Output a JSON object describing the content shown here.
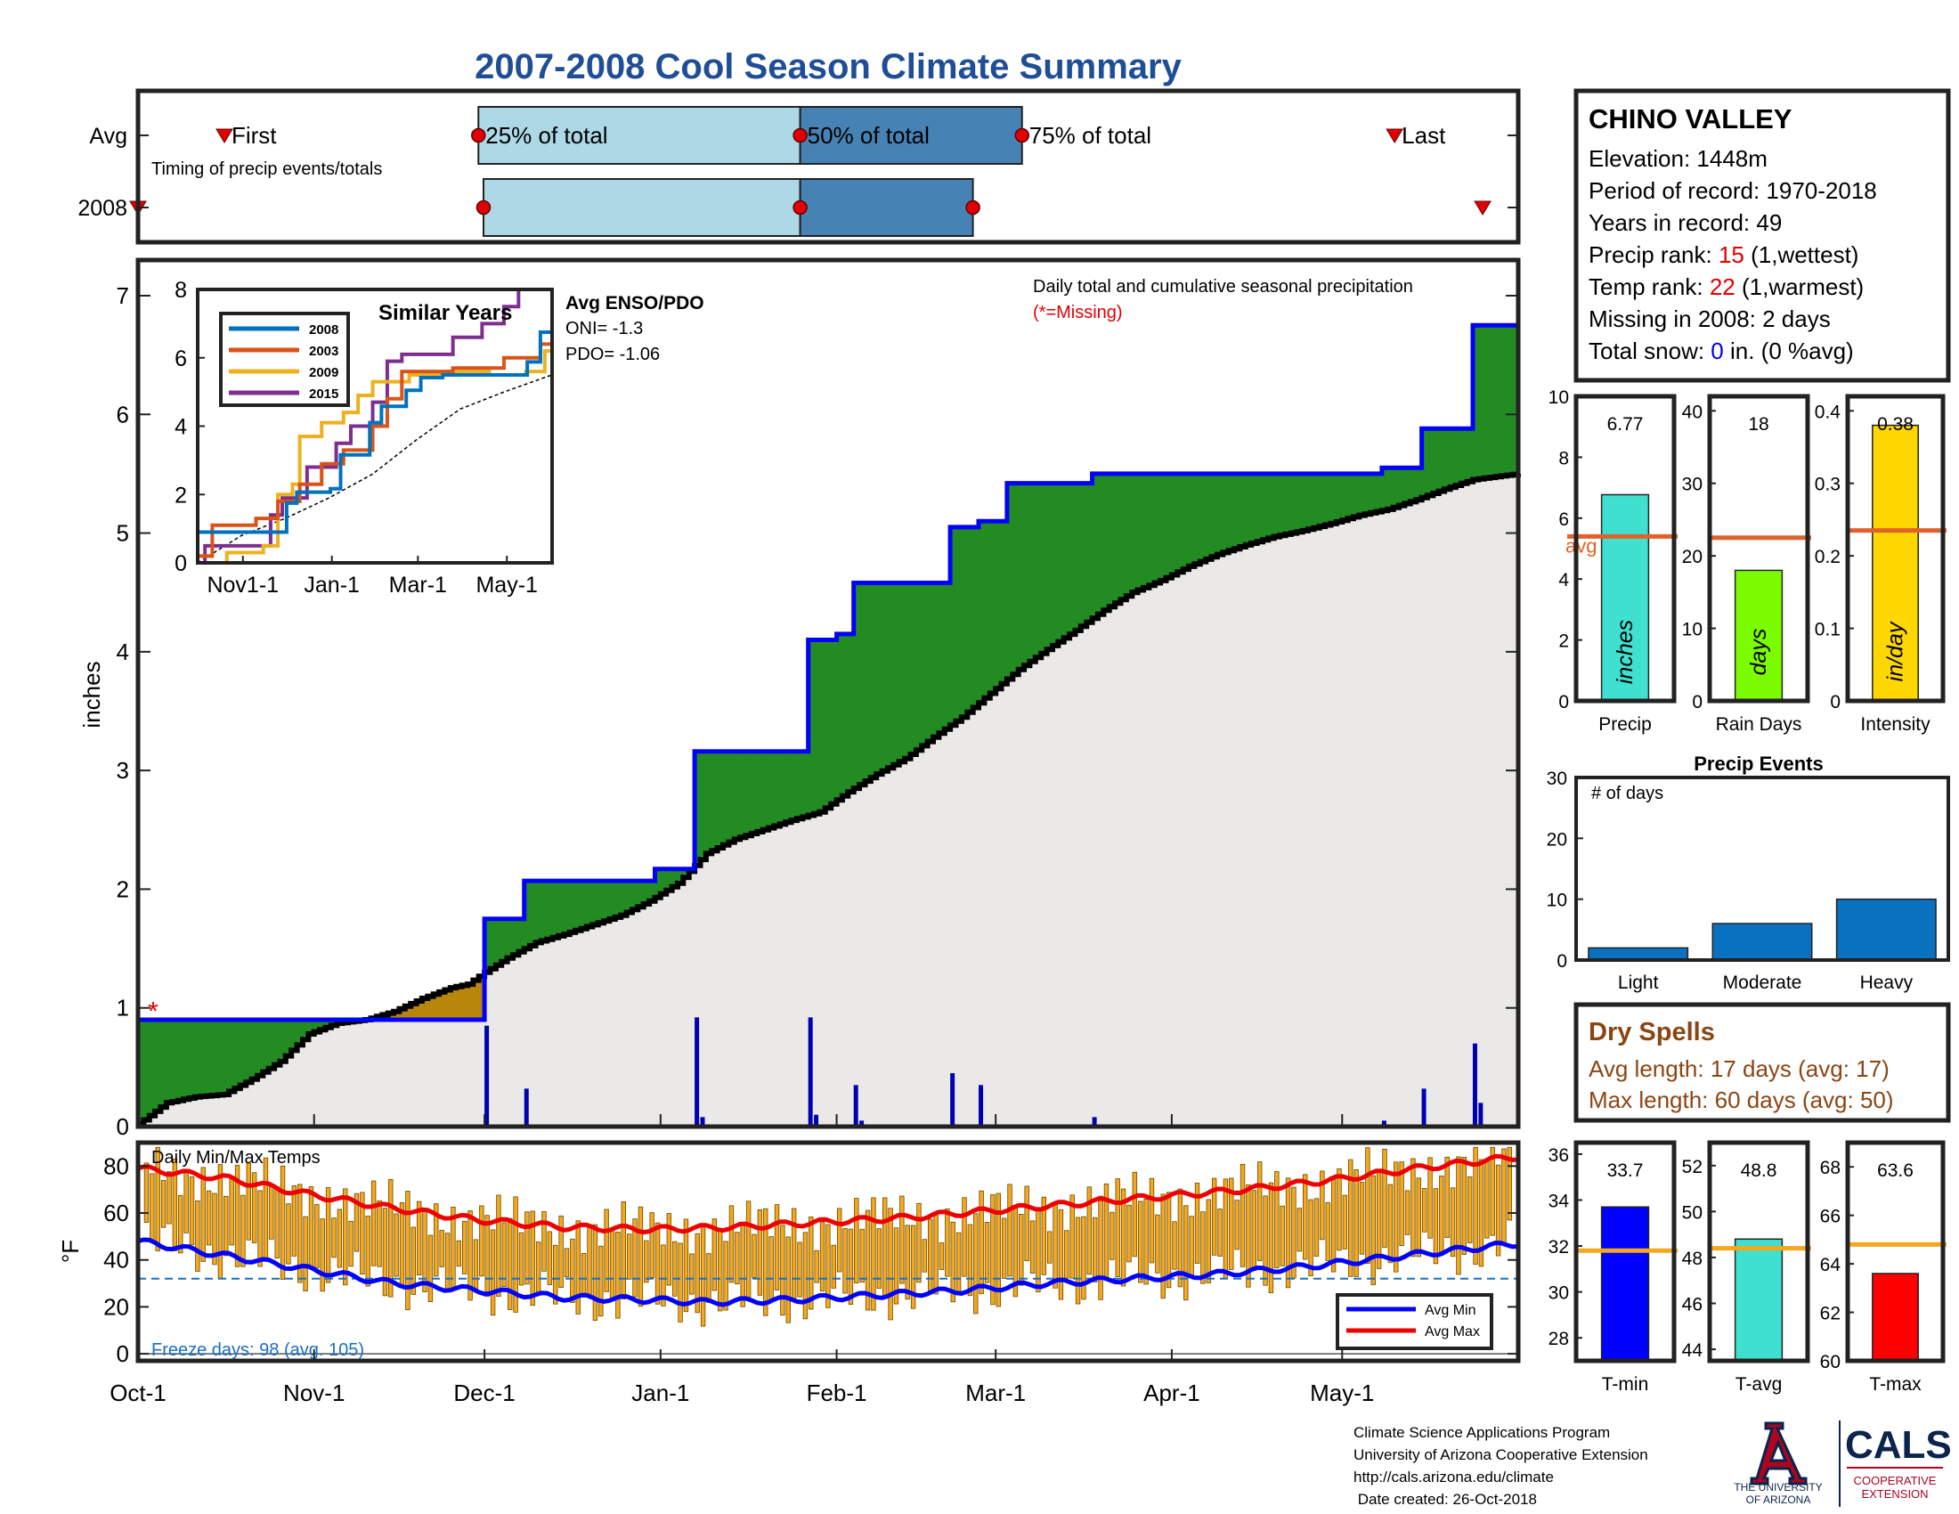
{
  "page": {
    "title": "2007-2008 Cool Season Climate Summary",
    "footer_lines": [
      "Climate Science Applications Program",
      "University of Arizona Cooperative Extension",
      "http://cals.arizona.edu/climate",
      " Date created: 26-Oct-2018"
    ],
    "logos": {
      "ua_top": "THE UNIVERSITY",
      "ua_bottom": "OF ARIZONA",
      "cals": "CALS",
      "cals_sub1": "COOPERATIVE",
      "cals_sub2": "EXTENSION"
    }
  },
  "station": {
    "name": "CHINO VALLEY",
    "elevation": "Elevation: 1448m",
    "period": "Period of record: 1970-2018",
    "years": "Years in record: 49",
    "precip_rank_label": "Precip rank: ",
    "precip_rank_value": "15",
    "precip_rank_note": " (1,wettest)",
    "temp_rank_label": "Temp rank: ",
    "temp_rank_value": "22",
    "temp_rank_note": " (1,warmest)",
    "missing": "Missing in 2008: 2 days",
    "snow_label": "Total snow: ",
    "snow_value": "0",
    "snow_note": " in. (0 %avg)"
  },
  "dry_spells": {
    "title": "Dry Spells",
    "avg": "Avg length: 17 days (avg: 17)",
    "max": "Max length: 60 days (avg: 50)"
  },
  "colors": {
    "title": "#1f4e96",
    "green": "#228b22",
    "blue_line": "#0000ff",
    "brown": "#b8860b",
    "light_blue": "#add8e6",
    "steel_blue": "#4682b4",
    "bar_blue": "#0a70c0",
    "orange_bar": "#f4a81d",
    "red": "#ee0000",
    "avg_line": "#e0622a",
    "dry_text": "#8b4513"
  },
  "chart_data": [
    {
      "id": "timing",
      "type": "range",
      "ylabels": [
        "Avg",
        "2008"
      ],
      "labels": {
        "first": "First",
        "p25": "25% of total",
        "p50": "50% of total",
        "p75": "75% of total",
        "last": "Last",
        "note": "Timing of precip events/totals"
      },
      "avg": {
        "first": 51,
        "p25": 201,
        "p50": 391,
        "p75": 522,
        "last": 742
      },
      "y2008": {
        "first": 0,
        "p25": 204,
        "p50": 391,
        "p75": 493,
        "last": 794
      },
      "xlim": [
        0,
        815
      ]
    },
    {
      "id": "main",
      "type": "area",
      "title": "Daily total and cumulative seasonal precipitation",
      "subtitle": "(*=Missing)",
      "ylabel": "inches",
      "ylim": [
        0,
        7.3
      ],
      "yticks": [
        0,
        1,
        2,
        3,
        4,
        5,
        6,
        7
      ],
      "xlim": [
        0,
        243
      ],
      "xticks": [
        {
          "day": 0,
          "label": "Oct-1"
        },
        {
          "day": 31,
          "label": "Nov-1"
        },
        {
          "day": 61,
          "label": "Dec-1"
        },
        {
          "day": 92,
          "label": "Jan-1"
        },
        {
          "day": 123,
          "label": "Feb-1"
        },
        {
          "day": 151,
          "label": "Mar-1"
        },
        {
          "day": 182,
          "label": "Apr-1"
        },
        {
          "day": 212,
          "label": "May-1"
        }
      ],
      "cumulative_2008_steps": [
        [
          0,
          0.9
        ],
        [
          61,
          1.75
        ],
        [
          68,
          2.07
        ],
        [
          91,
          2.17
        ],
        [
          98,
          3.16
        ],
        [
          118,
          4.1
        ],
        [
          123,
          4.15
        ],
        [
          126,
          4.58
        ],
        [
          143,
          5.05
        ],
        [
          148,
          5.1
        ],
        [
          153,
          5.42
        ],
        [
          168,
          5.5
        ],
        [
          209,
          5.5
        ],
        [
          219,
          5.55
        ],
        [
          226,
          5.88
        ],
        [
          235,
          6.75
        ],
        [
          243,
          6.75
        ]
      ],
      "average_cumulative": [
        [
          0,
          0.02
        ],
        [
          5,
          0.2
        ],
        [
          10,
          0.25
        ],
        [
          15,
          0.27
        ],
        [
          20,
          0.4
        ],
        [
          25,
          0.55
        ],
        [
          30,
          0.78
        ],
        [
          35,
          0.87
        ],
        [
          40,
          0.9
        ],
        [
          45,
          0.97
        ],
        [
          50,
          1.08
        ],
        [
          55,
          1.17
        ],
        [
          58,
          1.2
        ],
        [
          61,
          1.3
        ],
        [
          65,
          1.42
        ],
        [
          70,
          1.55
        ],
        [
          75,
          1.62
        ],
        [
          80,
          1.7
        ],
        [
          85,
          1.78
        ],
        [
          90,
          1.9
        ],
        [
          95,
          2.05
        ],
        [
          100,
          2.3
        ],
        [
          105,
          2.42
        ],
        [
          110,
          2.5
        ],
        [
          115,
          2.58
        ],
        [
          120,
          2.65
        ],
        [
          125,
          2.82
        ],
        [
          130,
          2.97
        ],
        [
          135,
          3.1
        ],
        [
          140,
          3.28
        ],
        [
          145,
          3.45
        ],
        [
          150,
          3.65
        ],
        [
          155,
          3.85
        ],
        [
          160,
          4.02
        ],
        [
          165,
          4.18
        ],
        [
          170,
          4.35
        ],
        [
          175,
          4.5
        ],
        [
          180,
          4.6
        ],
        [
          185,
          4.72
        ],
        [
          190,
          4.82
        ],
        [
          195,
          4.9
        ],
        [
          200,
          4.97
        ],
        [
          205,
          5.02
        ],
        [
          210,
          5.08
        ],
        [
          215,
          5.15
        ],
        [
          220,
          5.2
        ],
        [
          225,
          5.28
        ],
        [
          230,
          5.37
        ],
        [
          235,
          5.45
        ],
        [
          243,
          5.5
        ]
      ],
      "daily_precip": [
        [
          61,
          0.85
        ],
        [
          68,
          0.32
        ],
        [
          98,
          0.92
        ],
        [
          99,
          0.08
        ],
        [
          118,
          0.92
        ],
        [
          119,
          0.1
        ],
        [
          126,
          0.35
        ],
        [
          127,
          0.05
        ],
        [
          143,
          0.45
        ],
        [
          148,
          0.35
        ],
        [
          168,
          0.08
        ],
        [
          219,
          0.05
        ],
        [
          226,
          0.32
        ],
        [
          235,
          0.7
        ],
        [
          236,
          0.2
        ]
      ],
      "missing_marker": {
        "day": 3,
        "value": 1.0,
        "symbol": "*"
      }
    },
    {
      "id": "similar_years",
      "type": "line",
      "title": "Similar Years",
      "xlim": [
        0,
        243
      ],
      "ylim": [
        0,
        8
      ],
      "yticks": [
        0,
        2,
        4,
        6,
        8
      ],
      "xticks": [
        {
          "day": 31,
          "label": "Nov1-1"
        },
        {
          "day": 92,
          "label": "Jan-1"
        },
        {
          "day": 151,
          "label": "Mar-1"
        },
        {
          "day": 212,
          "label": "May-1"
        }
      ],
      "series": [
        {
          "name": "2008",
          "color": "#0072bd",
          "steps": [
            [
              0,
              0.9
            ],
            [
              61,
              1.75
            ],
            [
              68,
              2.07
            ],
            [
              91,
              2.17
            ],
            [
              98,
              3.16
            ],
            [
              118,
              4.1
            ],
            [
              126,
              4.58
            ],
            [
              143,
              5.05
            ],
            [
              153,
              5.42
            ],
            [
              168,
              5.5
            ],
            [
              209,
              5.5
            ],
            [
              226,
              5.88
            ],
            [
              235,
              6.75
            ],
            [
              243,
              6.75
            ]
          ]
        },
        {
          "name": "2003",
          "color": "#d95319",
          "steps": [
            [
              0,
              0.2
            ],
            [
              10,
              1.1
            ],
            [
              40,
              1.3
            ],
            [
              55,
              1.8
            ],
            [
              70,
              2.3
            ],
            [
              85,
              2.9
            ],
            [
              100,
              3.3
            ],
            [
              120,
              4.0
            ],
            [
              130,
              4.8
            ],
            [
              140,
              5.6
            ],
            [
              175,
              5.7
            ],
            [
              210,
              6.0
            ],
            [
              235,
              6.4
            ],
            [
              243,
              6.6
            ]
          ]
        },
        {
          "name": "2009",
          "color": "#edb120",
          "steps": [
            [
              0,
              0.0
            ],
            [
              20,
              0.3
            ],
            [
              45,
              0.5
            ],
            [
              55,
              2.0
            ],
            [
              65,
              2.3
            ],
            [
              70,
              3.7
            ],
            [
              85,
              4.1
            ],
            [
              100,
              4.4
            ],
            [
              110,
              4.9
            ],
            [
              120,
              5.3
            ],
            [
              145,
              5.5
            ],
            [
              170,
              5.6
            ],
            [
              200,
              5.5
            ],
            [
              225,
              5.6
            ],
            [
              238,
              6.2
            ],
            [
              243,
              6.7
            ]
          ]
        },
        {
          "name": "2015",
          "color": "#7e2f8e",
          "steps": [
            [
              0,
              0.0
            ],
            [
              5,
              0.5
            ],
            [
              30,
              0.5
            ],
            [
              50,
              1.4
            ],
            [
              58,
              1.9
            ],
            [
              75,
              2.8
            ],
            [
              95,
              3.5
            ],
            [
              105,
              4.0
            ],
            [
              120,
              4.7
            ],
            [
              130,
              5.9
            ],
            [
              140,
              6.1
            ],
            [
              165,
              6.1
            ],
            [
              175,
              6.6
            ],
            [
              195,
              7.0
            ],
            [
              210,
              7.5
            ],
            [
              220,
              8.0
            ],
            [
              243,
              8.0
            ]
          ]
        }
      ],
      "average": [
        [
          0,
          0.0
        ],
        [
          30,
          0.8
        ],
        [
          60,
          1.3
        ],
        [
          90,
          1.9
        ],
        [
          120,
          2.6
        ],
        [
          150,
          3.6
        ],
        [
          180,
          4.5
        ],
        [
          210,
          5.0
        ],
        [
          243,
          5.5
        ]
      ]
    },
    {
      "id": "enso",
      "type": "table",
      "title": "Avg ENSO/PDO",
      "oni": "ONI= -1.3",
      "pdo": "PDO= -1.06"
    },
    {
      "id": "precip_bar",
      "type": "bar",
      "xlabel": "Precip",
      "ylim": [
        0,
        10
      ],
      "yticks": [
        0,
        2,
        4,
        6,
        8,
        10
      ],
      "value": 6.77,
      "value_label": "6.77",
      "avg": 5.4,
      "avg_label": "avg",
      "bar_label": "inches",
      "color": "#40e0d0"
    },
    {
      "id": "rain_days_bar",
      "type": "bar",
      "xlabel": "Rain Days",
      "ylim": [
        0,
        42
      ],
      "yticks": [
        0,
        10,
        20,
        30,
        40
      ],
      "value": 18,
      "value_label": "18",
      "avg": 22.5,
      "bar_label": "days",
      "color": "#7cfc00"
    },
    {
      "id": "intensity_bar",
      "type": "bar",
      "xlabel": "Intensity",
      "ylim": [
        0,
        0.42
      ],
      "yticks": [
        0,
        0.1,
        0.2,
        0.3,
        0.4
      ],
      "value": 0.38,
      "value_label": "0.38",
      "avg": 0.235,
      "bar_label": "in/day",
      "color": "#ffd700"
    },
    {
      "id": "precip_events",
      "type": "bar",
      "title": "Precip Events",
      "annotation": "# of days",
      "ylim": [
        0,
        30
      ],
      "yticks": [
        0,
        10,
        20,
        30
      ],
      "categories": [
        "Light",
        "Moderate",
        "Heavy"
      ],
      "values": [
        2,
        6,
        10
      ],
      "color": "#0a70c0"
    },
    {
      "id": "temps",
      "type": "bar",
      "title": "Daily Min/Max Temps",
      "ylabel": "°F",
      "ylim": [
        -3,
        90
      ],
      "yticks": [
        0,
        20,
        40,
        60,
        80
      ],
      "xlim": [
        0,
        243
      ],
      "freeze_label": "Freeze days: 98 (avg. 105)",
      "freeze_line": 32,
      "legend": [
        "Avg Min",
        "Avg Max"
      ],
      "avg_min": [
        [
          0,
          48
        ],
        [
          15,
          42
        ],
        [
          30,
          36
        ],
        [
          45,
          30
        ],
        [
          60,
          27
        ],
        [
          75,
          24
        ],
        [
          90,
          23
        ],
        [
          100,
          22
        ],
        [
          115,
          23
        ],
        [
          130,
          25
        ],
        [
          145,
          27
        ],
        [
          160,
          30
        ],
        [
          175,
          32
        ],
        [
          190,
          34
        ],
        [
          205,
          37
        ],
        [
          220,
          41
        ],
        [
          235,
          45
        ],
        [
          243,
          47
        ]
      ],
      "avg_max": [
        [
          0,
          79
        ],
        [
          15,
          75
        ],
        [
          30,
          68
        ],
        [
          45,
          62
        ],
        [
          60,
          57
        ],
        [
          75,
          54
        ],
        [
          90,
          53
        ],
        [
          105,
          54
        ],
        [
          120,
          56
        ],
        [
          135,
          58
        ],
        [
          150,
          61
        ],
        [
          165,
          64
        ],
        [
          180,
          67
        ],
        [
          195,
          70
        ],
        [
          210,
          74
        ],
        [
          225,
          79
        ],
        [
          243,
          84
        ]
      ]
    },
    {
      "id": "tmin_bar",
      "type": "bar",
      "xlabel": "T-min",
      "ylim": [
        27,
        36.5
      ],
      "yticks": [
        28,
        30,
        32,
        34,
        36
      ],
      "value": 33.7,
      "value_label": "33.7",
      "avg": 31.8,
      "color": "#0000ff"
    },
    {
      "id": "tavg_bar",
      "type": "bar",
      "xlabel": "T-avg",
      "ylim": [
        43.5,
        53
      ],
      "yticks": [
        44,
        46,
        48,
        50,
        52
      ],
      "value": 48.8,
      "value_label": "48.8",
      "avg": 48.4,
      "color": "#40e0d0"
    },
    {
      "id": "tmax_bar",
      "type": "bar",
      "xlabel": "T-max",
      "ylim": [
        60,
        69
      ],
      "yticks": [
        60,
        62,
        64,
        66,
        68
      ],
      "value": 63.6,
      "value_label": "63.6",
      "avg": 64.8,
      "color": "#ff0000"
    }
  ]
}
